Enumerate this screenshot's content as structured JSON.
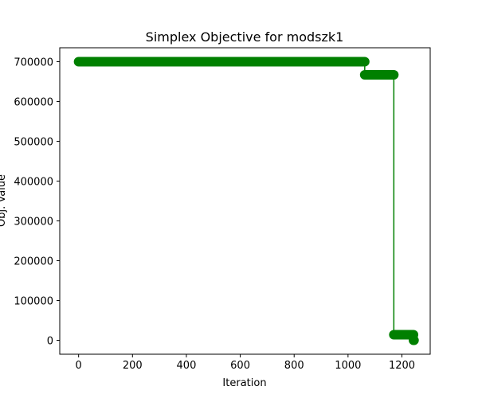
{
  "chart_data": {
    "type": "line",
    "title": "Simplex Objective for modszk1",
    "xlabel": "Iteration",
    "ylabel": "Obj. Value",
    "xlim": [
      -70,
      1305
    ],
    "ylim": [
      -35000,
      735000
    ],
    "xticks": [
      0,
      200,
      400,
      600,
      800,
      1000,
      1200
    ],
    "yticks": [
      0,
      100000,
      200000,
      300000,
      400000,
      500000,
      600000,
      700000
    ],
    "grid": false,
    "legend": "none",
    "series": [
      {
        "color": "#008000",
        "marker": "circle",
        "segments": [
          {
            "x_start": 0,
            "x_end": 1062,
            "y": 700000
          },
          {
            "x_start": 1062,
            "x_end": 1170,
            "y": 667000
          },
          {
            "x_start": 1170,
            "x_end": 1243,
            "y": 14000
          },
          {
            "x_start": 1243,
            "x_end": 1245,
            "y": 0
          }
        ],
        "x": [
          0,
          1062,
          1062,
          1170,
          1170,
          1243,
          1243,
          1245
        ],
        "y": [
          700000,
          700000,
          667000,
          667000,
          14000,
          14000,
          0,
          0
        ]
      }
    ]
  }
}
